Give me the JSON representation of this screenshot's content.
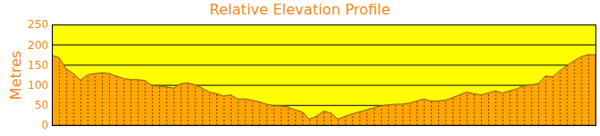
{
  "chart_data": {
    "type": "area",
    "title": "Relative Elevation Profile",
    "ylabel": "Metres",
    "x": [
      0,
      1,
      2,
      3,
      4,
      5,
      6,
      7,
      8,
      9,
      10,
      11,
      12,
      13,
      14,
      15,
      16,
      17,
      18,
      19,
      20,
      21,
      22,
      23,
      24,
      25,
      26,
      27,
      28,
      29,
      30,
      31,
      32,
      33,
      34,
      35,
      36,
      37,
      38,
      39,
      40,
      41,
      42,
      43,
      44,
      45,
      46,
      47,
      48,
      49,
      50,
      51,
      52,
      53,
      54,
      55,
      56,
      57,
      58,
      59,
      60,
      61,
      62,
      63,
      64,
      65,
      66,
      67,
      68,
      69,
      70,
      71,
      72,
      73,
      74,
      75,
      76
    ],
    "values": [
      173,
      168,
      140,
      128,
      112,
      125,
      128,
      130,
      128,
      122,
      116,
      113,
      113,
      111,
      98,
      97,
      95,
      92,
      103,
      105,
      100,
      92,
      82,
      78,
      72,
      75,
      65,
      65,
      62,
      58,
      52,
      48,
      48,
      45,
      38,
      33,
      15,
      22,
      35,
      30,
      15,
      22,
      28,
      33,
      38,
      43,
      48,
      50,
      52,
      52,
      55,
      60,
      65,
      60,
      60,
      62,
      68,
      75,
      82,
      78,
      75,
      80,
      85,
      80,
      85,
      90,
      98,
      100,
      103,
      122,
      120,
      135,
      148,
      160,
      170,
      175,
      175
    ],
    "color": "#ffa500",
    "xlim": [
      0,
      76
    ],
    "ylim": [
      0,
      250
    ],
    "yticks": [
      0,
      50,
      100,
      150,
      200,
      250
    ],
    "grid": true,
    "tick_labels": "y"
  }
}
